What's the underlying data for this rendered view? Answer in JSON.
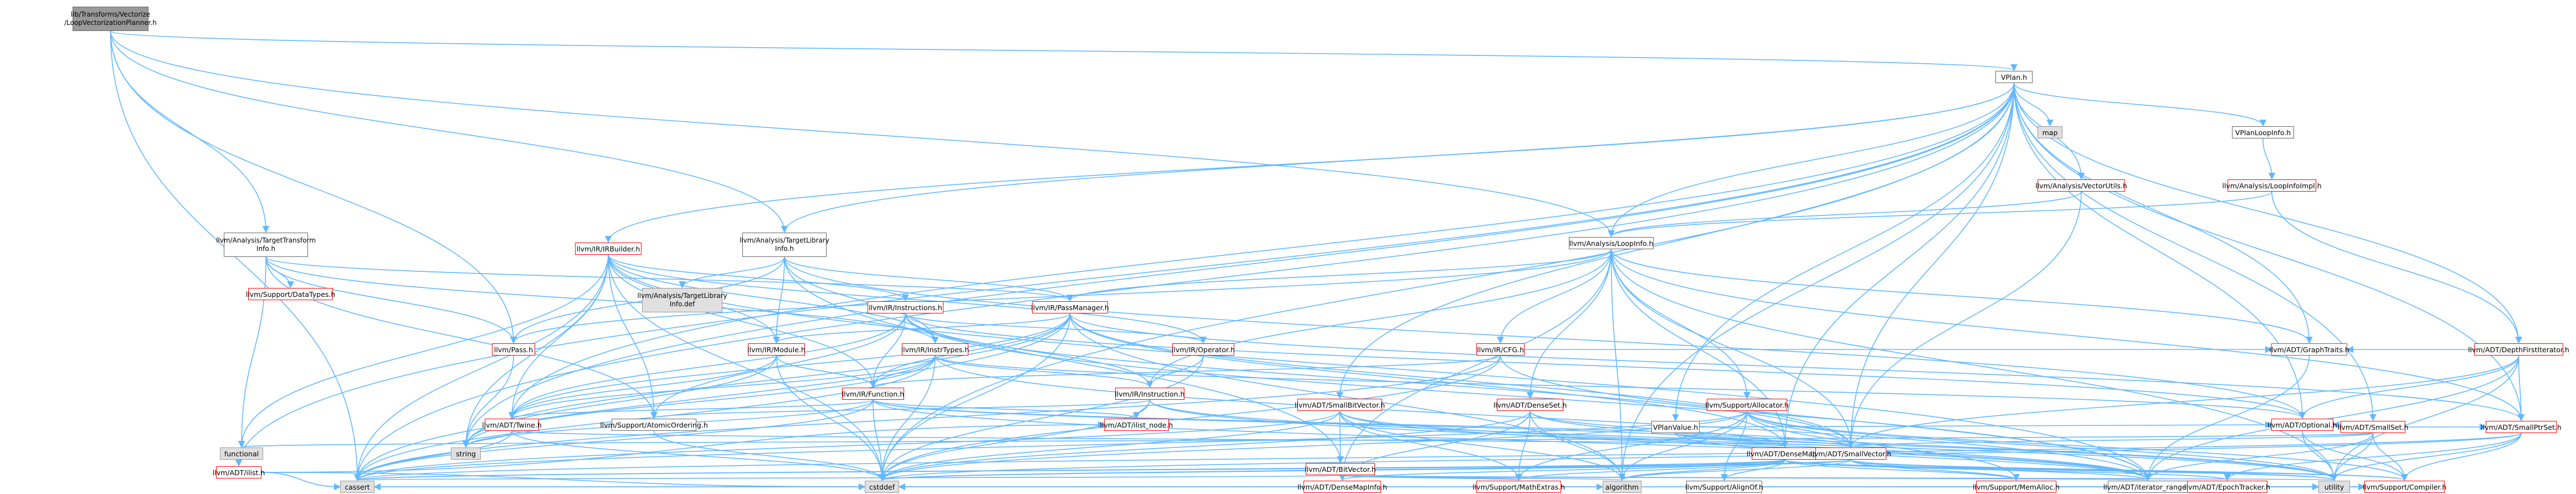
{
  "graph": {
    "colors": {
      "root_fill": "#999999",
      "node_fill": "#ffffff",
      "system_fill": "#e0e0e0",
      "linked_border": "#666666",
      "incomplete_border": "#ff0000",
      "system_border": "#999999",
      "edge": "#63b8ff"
    },
    "nodes": [
      {
        "id": "root",
        "label": "lib/Transforms/Vectorize\n/LoopVectorizationPlanner.h",
        "kind": "root"
      },
      {
        "id": "vplan_h",
        "label": "VPlan.h",
        "kind": "white"
      },
      {
        "id": "map",
        "label": "map",
        "kind": "sys"
      },
      {
        "id": "vplanloopinfo",
        "label": "VPlanLoopInfo.h",
        "kind": "white"
      },
      {
        "id": "vectorutils",
        "label": "llvm/Analysis/VectorUtils.h",
        "kind": "red"
      },
      {
        "id": "loopinfoimpl",
        "label": "llvm/Analysis/LoopInfoImpl.h",
        "kind": "red"
      },
      {
        "id": "tti",
        "label": "llvm/Analysis/TargetTransform\nInfo.h",
        "kind": "white"
      },
      {
        "id": "tli",
        "label": "llvm/Analysis/TargetLibrary\nInfo.h",
        "kind": "white"
      },
      {
        "id": "loopinfo",
        "label": "llvm/Analysis/LoopInfo.h",
        "kind": "white"
      },
      {
        "id": "irbuilder",
        "label": "llvm/IR/IRBuilder.h",
        "kind": "red"
      },
      {
        "id": "datatypes",
        "label": "llvm/Support/DataTypes.h",
        "kind": "red"
      },
      {
        "id": "tlidef",
        "label": "llvm/Analysis/TargetLibrary\nInfo.def",
        "kind": "sys"
      },
      {
        "id": "instructions",
        "label": "llvm/IR/Instructions.h",
        "kind": "red"
      },
      {
        "id": "passmanager",
        "label": "llvm/IR/PassManager.h",
        "kind": "red"
      },
      {
        "id": "pass",
        "label": "llvm/Pass.h",
        "kind": "red"
      },
      {
        "id": "module",
        "label": "llvm/IR/Module.h",
        "kind": "red"
      },
      {
        "id": "insttypes",
        "label": "llvm/IR/InstrTypes.h",
        "kind": "red"
      },
      {
        "id": "operator",
        "label": "llvm/IR/Operator.h",
        "kind": "red"
      },
      {
        "id": "cfg",
        "label": "llvm/IR/CFG.h",
        "kind": "red"
      },
      {
        "id": "function",
        "label": "llvm/IR/Function.h",
        "kind": "red"
      },
      {
        "id": "instruction",
        "label": "llvm/IR/Instruction.h",
        "kind": "red"
      },
      {
        "id": "twine",
        "label": "llvm/ADT/Twine.h",
        "kind": "red"
      },
      {
        "id": "atomic",
        "label": "llvm/Support/AtomicOrdering.h",
        "kind": "white"
      },
      {
        "id": "ilistnode",
        "label": "llvm/ADT/ilist_node.h",
        "kind": "red"
      },
      {
        "id": "smallbitvector",
        "label": "llvm/ADT/SmallBitVector.h",
        "kind": "red"
      },
      {
        "id": "denseset",
        "label": "llvm/ADT/DenseSet.h",
        "kind": "red"
      },
      {
        "id": "allocator",
        "label": "llvm/Support/Allocator.h",
        "kind": "red"
      },
      {
        "id": "vplanvalue",
        "label": "VPlanValue.h",
        "kind": "white"
      },
      {
        "id": "graphtraits",
        "label": "llvm/ADT/GraphTraits.h",
        "kind": "white"
      },
      {
        "id": "dfi",
        "label": "llvm/ADT/DepthFirstIterator.h",
        "kind": "red"
      },
      {
        "id": "smallset",
        "label": "llvm/ADT/SmallSet.h",
        "kind": "red"
      },
      {
        "id": "smallptrset",
        "label": "llvm/ADT/SmallPtrSet.h",
        "kind": "red"
      },
      {
        "id": "optional",
        "label": "llvm/ADT/Optional.h",
        "kind": "red"
      },
      {
        "id": "densemap",
        "label": "llvm/ADT/DenseMap.h",
        "kind": "red"
      },
      {
        "id": "smallvector",
        "label": "llvm/ADT/SmallVector.h",
        "kind": "red"
      },
      {
        "id": "bitvector",
        "label": "llvm/ADT/BitVector.h",
        "kind": "red"
      },
      {
        "id": "densemapinfo",
        "label": "llvm/ADT/DenseMapInfo.h",
        "kind": "red"
      },
      {
        "id": "mathextras",
        "label": "llvm/Support/MathExtras.h",
        "kind": "red"
      },
      {
        "id": "alignof",
        "label": "llvm/Support/AlignOf.h",
        "kind": "white"
      },
      {
        "id": "memalloc",
        "label": "llvm/Support/MemAlloc.h",
        "kind": "red"
      },
      {
        "id": "iterrange",
        "label": "llvm/ADT/iterator_range.h",
        "kind": "white"
      },
      {
        "id": "epochtracker",
        "label": "llvm/ADT/EpochTracker.h",
        "kind": "red"
      },
      {
        "id": "compiler",
        "label": "llvm/Support/Compiler.h",
        "kind": "red"
      },
      {
        "id": "ilist",
        "label": "llvm/ADT/ilist.h",
        "kind": "red"
      },
      {
        "id": "functional",
        "label": "functional",
        "kind": "sys"
      },
      {
        "id": "string",
        "label": "string",
        "kind": "sys"
      },
      {
        "id": "cassert",
        "label": "cassert",
        "kind": "sys"
      },
      {
        "id": "cstddef",
        "label": "cstddef",
        "kind": "sys"
      },
      {
        "id": "algorithm",
        "label": "algorithm",
        "kind": "sys"
      },
      {
        "id": "utility",
        "label": "utility",
        "kind": "sys"
      }
    ],
    "edges": [
      [
        "root",
        "vplan_h"
      ],
      [
        "root",
        "tti"
      ],
      [
        "root",
        "tli"
      ],
      [
        "root",
        "loopinfo"
      ],
      [
        "root",
        "pass"
      ],
      [
        "root",
        "cassert"
      ],
      [
        "vplan_h",
        "map"
      ],
      [
        "vplan_h",
        "vplanloopinfo"
      ],
      [
        "vplan_h",
        "vectorutils"
      ],
      [
        "vplan_h",
        "tli"
      ],
      [
        "vplan_h",
        "loopinfo"
      ],
      [
        "vplan_h",
        "irbuilder"
      ],
      [
        "vplan_h",
        "vplanvalue"
      ],
      [
        "vplan_h",
        "dfi"
      ],
      [
        "vplan_h",
        "graphtraits"
      ],
      [
        "vplan_h",
        "smallset"
      ],
      [
        "vplan_h",
        "smallptrset"
      ],
      [
        "vplan_h",
        "optional"
      ],
      [
        "vplan_h",
        "densemap"
      ],
      [
        "vplan_h",
        "smallvector"
      ],
      [
        "vplan_h",
        "smallbitvector"
      ],
      [
        "vplan_h",
        "twine"
      ],
      [
        "vplan_h",
        "ilist"
      ],
      [
        "vplan_h",
        "cassert"
      ],
      [
        "vplan_h",
        "string"
      ],
      [
        "vplan_h",
        "algorithm"
      ],
      [
        "vplan_h",
        "cstddef"
      ],
      [
        "vplanloopinfo",
        "loopinfoimpl"
      ],
      [
        "vectorutils",
        "loopinfo"
      ],
      [
        "vectorutils",
        "smallvector"
      ],
      [
        "loopinfoimpl",
        "dfi"
      ],
      [
        "loopinfoimpl",
        "loopinfo"
      ],
      [
        "tti",
        "datatypes"
      ],
      [
        "tti",
        "passmanager"
      ],
      [
        "tti",
        "pass"
      ],
      [
        "tti",
        "insttypes"
      ],
      [
        "tti",
        "functional"
      ],
      [
        "tti",
        "atomic"
      ],
      [
        "tli",
        "tlidef"
      ],
      [
        "tli",
        "passmanager"
      ],
      [
        "tli",
        "module"
      ],
      [
        "tli",
        "pass"
      ],
      [
        "tli",
        "insttypes"
      ],
      [
        "tli",
        "optional"
      ],
      [
        "tli",
        "bitvector"
      ],
      [
        "loopinfo",
        "passmanager"
      ],
      [
        "loopinfo",
        "instruction"
      ],
      [
        "loopinfo",
        "cfg"
      ],
      [
        "loopinfo",
        "pass"
      ],
      [
        "loopinfo",
        "allocator"
      ],
      [
        "loopinfo",
        "densemap"
      ],
      [
        "loopinfo",
        "densemapinfo"
      ],
      [
        "loopinfo",
        "denseset"
      ],
      [
        "loopinfo",
        "graphtraits"
      ],
      [
        "loopinfo",
        "smallptrset"
      ],
      [
        "loopinfo",
        "smallvector"
      ],
      [
        "loopinfo",
        "algorithm"
      ],
      [
        "loopinfo",
        "utility"
      ],
      [
        "irbuilder",
        "instructions"
      ],
      [
        "irbuilder",
        "operator"
      ],
      [
        "irbuilder",
        "module"
      ],
      [
        "irbuilder",
        "function"
      ],
      [
        "irbuilder",
        "insttypes"
      ],
      [
        "irbuilder",
        "twine"
      ],
      [
        "irbuilder",
        "atomic"
      ],
      [
        "irbuilder",
        "cassert"
      ],
      [
        "irbuilder",
        "cstddef"
      ],
      [
        "irbuilder",
        "functional"
      ],
      [
        "irbuilder",
        "string"
      ],
      [
        "irbuilder",
        "iterrange"
      ],
      [
        "instructions",
        "insttypes"
      ],
      [
        "instructions",
        "function"
      ],
      [
        "instructions",
        "instruction"
      ],
      [
        "instructions",
        "operator"
      ],
      [
        "instructions",
        "optional"
      ],
      [
        "instructions",
        "smallvector"
      ],
      [
        "instructions",
        "twine"
      ],
      [
        "instructions",
        "iterrange"
      ],
      [
        "instructions",
        "atomic"
      ],
      [
        "passmanager",
        "module"
      ],
      [
        "passmanager",
        "function"
      ],
      [
        "passmanager",
        "densemap"
      ],
      [
        "passmanager",
        "smallptrset"
      ],
      [
        "passmanager",
        "smallvector"
      ],
      [
        "passmanager",
        "twine"
      ],
      [
        "passmanager",
        "cassert"
      ],
      [
        "passmanager",
        "cstddef"
      ],
      [
        "passmanager",
        "algorithm"
      ],
      [
        "passmanager",
        "string"
      ],
      [
        "pass",
        "string"
      ],
      [
        "module",
        "function"
      ],
      [
        "module",
        "twine"
      ],
      [
        "module",
        "string"
      ],
      [
        "module",
        "cstddef"
      ],
      [
        "insttypes",
        "instruction"
      ],
      [
        "insttypes",
        "function"
      ],
      [
        "insttypes",
        "twine"
      ],
      [
        "insttypes",
        "optional"
      ],
      [
        "insttypes",
        "iterrange"
      ],
      [
        "insttypes",
        "cassert"
      ],
      [
        "insttypes",
        "cstddef"
      ],
      [
        "insttypes",
        "string"
      ],
      [
        "operator",
        "instruction"
      ],
      [
        "operator",
        "cstddef"
      ],
      [
        "cfg",
        "function"
      ],
      [
        "cfg",
        "graphtraits"
      ],
      [
        "cfg",
        "iterrange"
      ],
      [
        "cfg",
        "cassert"
      ],
      [
        "cfg",
        "cstddef"
      ],
      [
        "function",
        "twine"
      ],
      [
        "function",
        "ilistnode"
      ],
      [
        "function",
        "densemap"
      ],
      [
        "function",
        "iterrange"
      ],
      [
        "function",
        "cassert"
      ],
      [
        "function",
        "cstddef"
      ],
      [
        "function",
        "string"
      ],
      [
        "function",
        "smallvector"
      ],
      [
        "instruction",
        "ilistnode"
      ],
      [
        "instruction",
        "atomic"
      ],
      [
        "instruction",
        "iterrange"
      ],
      [
        "instruction",
        "cstddef"
      ],
      [
        "instruction",
        "utility"
      ],
      [
        "twine",
        "smallvector"
      ],
      [
        "twine",
        "cassert"
      ],
      [
        "twine",
        "cstddef"
      ],
      [
        "twine",
        "string"
      ],
      [
        "atomic",
        "cstddef"
      ],
      [
        "smallbitvector",
        "bitvector"
      ],
      [
        "smallbitvector",
        "iterrange"
      ],
      [
        "smallbitvector",
        "mathextras"
      ],
      [
        "smallbitvector",
        "algorithm"
      ],
      [
        "smallbitvector",
        "cassert"
      ],
      [
        "smallbitvector",
        "cstddef"
      ],
      [
        "smallbitvector",
        "utility"
      ],
      [
        "denseset",
        "densemap"
      ],
      [
        "denseset",
        "densemapinfo"
      ],
      [
        "denseset",
        "mathextras"
      ],
      [
        "denseset",
        "algorithm"
      ],
      [
        "denseset",
        "cstddef"
      ],
      [
        "denseset",
        "utility"
      ],
      [
        "allocator",
        "alignof"
      ],
      [
        "allocator",
        "compiler"
      ],
      [
        "allocator",
        "mathextras"
      ],
      [
        "allocator",
        "memalloc"
      ],
      [
        "allocator",
        "smallvector"
      ],
      [
        "allocator",
        "algorithm"
      ],
      [
        "allocator",
        "cassert"
      ],
      [
        "allocator",
        "cstddef"
      ],
      [
        "allocator",
        "utility"
      ],
      [
        "vplanvalue",
        "densemap"
      ],
      [
        "vplanvalue",
        "smallvector"
      ],
      [
        "vplanvalue",
        "optional"
      ],
      [
        "vplanvalue",
        "iterrange"
      ],
      [
        "graphtraits",
        "iterrange"
      ],
      [
        "dfi",
        "graphtraits"
      ],
      [
        "dfi",
        "smallptrset"
      ],
      [
        "dfi",
        "iterrange"
      ],
      [
        "dfi",
        "optional"
      ],
      [
        "dfi",
        "smallvector"
      ],
      [
        "dfi",
        "utility"
      ],
      [
        "smallset",
        "smallptrset"
      ],
      [
        "smallset",
        "smallvector"
      ],
      [
        "smallset",
        "optional"
      ],
      [
        "smallset",
        "iterrange"
      ],
      [
        "smallset",
        "compiler"
      ],
      [
        "smallset",
        "functional"
      ],
      [
        "smallset",
        "utility"
      ],
      [
        "smallptrset",
        "epochtracker"
      ],
      [
        "smallptrset",
        "compiler"
      ],
      [
        "smallptrset",
        "cassert"
      ],
      [
        "smallptrset",
        "cstddef"
      ],
      [
        "smallptrset",
        "utility"
      ],
      [
        "optional",
        "compiler"
      ],
      [
        "optional",
        "utility"
      ],
      [
        "densemap",
        "densemapinfo"
      ],
      [
        "densemap",
        "epochtracker"
      ],
      [
        "densemap",
        "alignof"
      ],
      [
        "densemap",
        "compiler"
      ],
      [
        "densemap",
        "mathextras"
      ],
      [
        "densemap",
        "memalloc"
      ],
      [
        "densemap",
        "algorithm"
      ],
      [
        "densemap",
        "cassert"
      ],
      [
        "densemap",
        "cstddef"
      ],
      [
        "densemap",
        "utility"
      ],
      [
        "smallvector",
        "iterrange"
      ],
      [
        "smallvector",
        "compiler"
      ],
      [
        "smallvector",
        "memalloc"
      ],
      [
        "smallvector",
        "algorithm"
      ],
      [
        "smallvector",
        "cassert"
      ],
      [
        "smallvector",
        "cstddef"
      ],
      [
        "smallvector",
        "utility"
      ],
      [
        "bitvector",
        "densemapinfo"
      ],
      [
        "bitvector",
        "iterrange"
      ],
      [
        "bitvector",
        "mathextras"
      ],
      [
        "bitvector",
        "algorithm"
      ],
      [
        "bitvector",
        "cassert"
      ],
      [
        "bitvector",
        "utility"
      ],
      [
        "densemapinfo",
        "cassert"
      ],
      [
        "densemapinfo",
        "cstddef"
      ],
      [
        "densemapinfo",
        "utility"
      ],
      [
        "mathextras",
        "compiler"
      ],
      [
        "mathextras",
        "algorithm"
      ],
      [
        "mathextras",
        "cassert"
      ],
      [
        "alignof",
        "compiler"
      ],
      [
        "memalloc",
        "compiler"
      ],
      [
        "iterrange",
        "utility"
      ],
      [
        "epochtracker",
        "compiler"
      ],
      [
        "ilist",
        "ilistnode"
      ],
      [
        "ilist",
        "cassert"
      ],
      [
        "ilist",
        "cstddef"
      ]
    ]
  }
}
